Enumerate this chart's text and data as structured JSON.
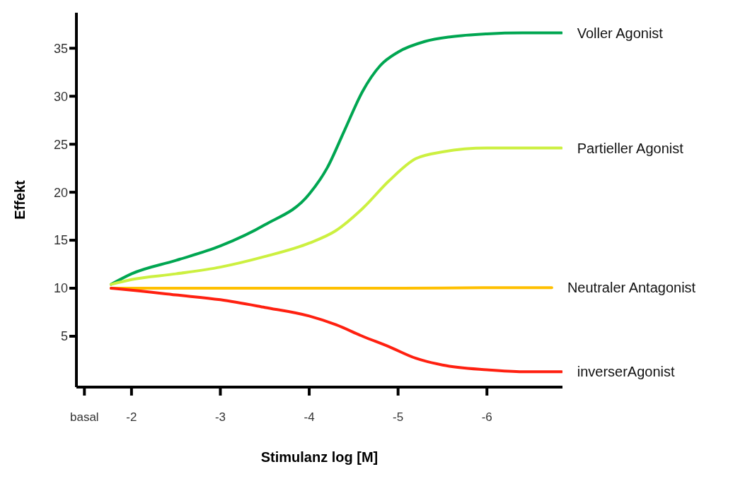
{
  "chart_data": {
    "type": "line",
    "xlabel": "Stimulanz log [M]",
    "ylabel": "Effekt",
    "xlim": [
      -1.38,
      -6.85
    ],
    "xticks": [
      {
        "value": -1.47,
        "label": "basal"
      },
      -2,
      -3,
      -4,
      -5,
      -6
    ],
    "ylim": [
      -0.3,
      38.7
    ],
    "yticks": [
      5,
      10,
      15,
      20,
      25,
      30,
      35
    ],
    "line_style": "solid",
    "series": [
      {
        "name": "Voller Agonist",
        "color": "#00a651",
        "x": [
          -1.77,
          -2,
          -2.5,
          -3,
          -3.5,
          -4,
          -4.2,
          -4.4,
          -4.6,
          -4.8,
          -5,
          -5.3,
          -5.6,
          -6,
          -6.4,
          -6.84
        ],
        "values": [
          10.4,
          11.5,
          12.9,
          14.4,
          16.6,
          19.8,
          22.5,
          26.5,
          30.5,
          33.2,
          34.6,
          35.7,
          36.2,
          36.5,
          36.6,
          36.6
        ]
      },
      {
        "name": "Partieller Agonist",
        "color": "#ccf040",
        "x": [
          -1.77,
          -2,
          -2.5,
          -3,
          -3.5,
          -4,
          -4.3,
          -4.6,
          -4.9,
          -5.2,
          -5.5,
          -6,
          -6.84
        ],
        "values": [
          10.4,
          10.9,
          11.5,
          12.2,
          13.3,
          14.7,
          16.0,
          18.3,
          21.2,
          23.5,
          24.2,
          24.6,
          24.6
        ]
      },
      {
        "name": "Neutraler Antagonist",
        "color": "#ffc000",
        "x": [
          -1.77,
          -3,
          -4,
          -5,
          -6,
          -6.73
        ],
        "values": [
          10,
          10,
          10,
          10,
          10.05,
          10.05
        ]
      },
      {
        "name": "inverserAgonist",
        "color": "#ff2010",
        "x": [
          -1.77,
          -2,
          -2.5,
          -3,
          -3.5,
          -4,
          -4.3,
          -4.6,
          -4.9,
          -5.2,
          -5.5,
          -6,
          -6.4,
          -6.84
        ],
        "values": [
          10,
          9.8,
          9.3,
          8.8,
          8.0,
          7.1,
          6.2,
          5.0,
          3.9,
          2.7,
          2.0,
          1.5,
          1.3,
          1.3
        ]
      }
    ]
  }
}
